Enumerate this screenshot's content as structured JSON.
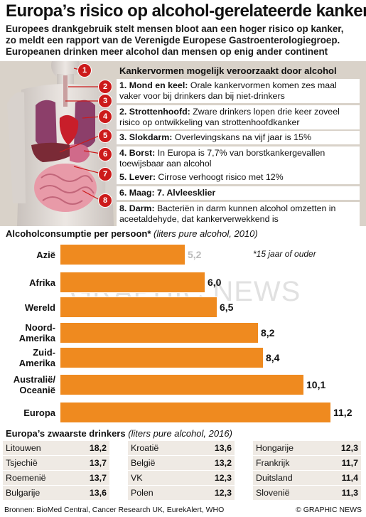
{
  "title": "Europa’s risico op alcohol-gerelateerde kanker",
  "intro": [
    "Europees drankgebruik stelt mensen bloot aan een hoger risico op kanker,",
    "zo meldt een rapport van de Verenigde Europese Gastroenterologiegroep.",
    "Europeanen drinken meer alcohol dan mensen op enig ander continent"
  ],
  "cancers": {
    "title": "Kankervormen mogelijk veroorzaakt door alcohol",
    "items": [
      {
        "head": "1. Mond en keel:",
        "text": " Orale kankervormen komen zes maal vaker voor bij drinkers dan bij niet-drinkers"
      },
      {
        "head": "2. Strottenhoofd:",
        "text": " Zware drinkers lopen drie keer zoveel risico op ontwikkeling van strottenhoofdkanker"
      },
      {
        "head": "3. Slokdarm:",
        "text": " Overlevingskans na vijf jaar is 15%"
      },
      {
        "head": "4. Borst:",
        "text": " In Europa is 7,7% van borstkankergevallen toewijsbaar aan alcohol"
      },
      {
        "head": "5. Lever:",
        "text": " Cirrose verhoogt risico met 12%"
      },
      {
        "head": "6. Maag:  7. Alvleesklier",
        "text": ""
      },
      {
        "head": "8. Darm:",
        "text": " Bacteriën in darm kunnen alcohol omzetten in aceetaldehyde, dat kankerverwekkend is"
      }
    ],
    "badges": [
      "1",
      "2",
      "3",
      "4",
      "5",
      "6",
      "7",
      "8"
    ]
  },
  "consumption": {
    "title": "Alcoholconsumptie per persoon*",
    "subtitle": " (liters pure alcohol, 2010)",
    "note": "*15 jaar of ouder",
    "watermark": "GRAPHIC NEWS"
  },
  "chart_data": {
    "type": "bar",
    "orientation": "horizontal",
    "title": "Alcoholconsumptie per persoon*",
    "subtitle": "(liters pure alcohol, 2010)",
    "categories": [
      "Azië",
      "Afrika",
      "Wereld",
      "Noord-Amerika",
      "Zuid-Amerika",
      "Australië/ Oceanië",
      "Europa"
    ],
    "category_lines": [
      [
        "Azië"
      ],
      [
        "Afrika"
      ],
      [
        "Wereld"
      ],
      [
        "Noord-",
        "Amerika"
      ],
      [
        "Zuid-",
        "Amerika"
      ],
      [
        "Australië/",
        "Oceanië"
      ],
      [
        "Europa"
      ]
    ],
    "values": [
      5.2,
      6.0,
      6.5,
      8.2,
      8.4,
      10.1,
      11.2
    ],
    "value_labels": [
      "5,2",
      "6,0",
      "6,5",
      "8,2",
      "8,4",
      "10,1",
      "11,2"
    ],
    "xlim": [
      0,
      11.2
    ],
    "color": "#ef8a1f"
  },
  "drinkers": {
    "title": "Europa’s zwaarste drinkers",
    "subtitle": " (liters pure alcohol, 2016)",
    "columns": [
      [
        {
          "country": "Litouwen",
          "value": "18,2"
        },
        {
          "country": "Tsjechië",
          "value": "13,7"
        },
        {
          "country": "Roemenië",
          "value": "13,7"
        },
        {
          "country": "Bulgarije",
          "value": "13,6"
        }
      ],
      [
        {
          "country": "Kroatië",
          "value": "13,6"
        },
        {
          "country": "België",
          "value": "13,2"
        },
        {
          "country": "VK",
          "value": "12,3"
        },
        {
          "country": "Polen",
          "value": "12,3"
        }
      ],
      [
        {
          "country": "Hongarije",
          "value": "12,3"
        },
        {
          "country": "Frankrijk",
          "value": "11,7"
        },
        {
          "country": "Duitsland",
          "value": "11,4"
        },
        {
          "country": "Slovenië",
          "value": "11,3"
        }
      ]
    ]
  },
  "footer": {
    "source": "Bronnen: BioMed Central, Cancer Research UK, EurekAlert, WHO",
    "credit": "© GRAPHIC NEWS"
  },
  "colors": {
    "bar": "#ef8a1f",
    "badge": "#cc1a1a",
    "panel": "#d9d2c9",
    "row": "#efeae4"
  }
}
